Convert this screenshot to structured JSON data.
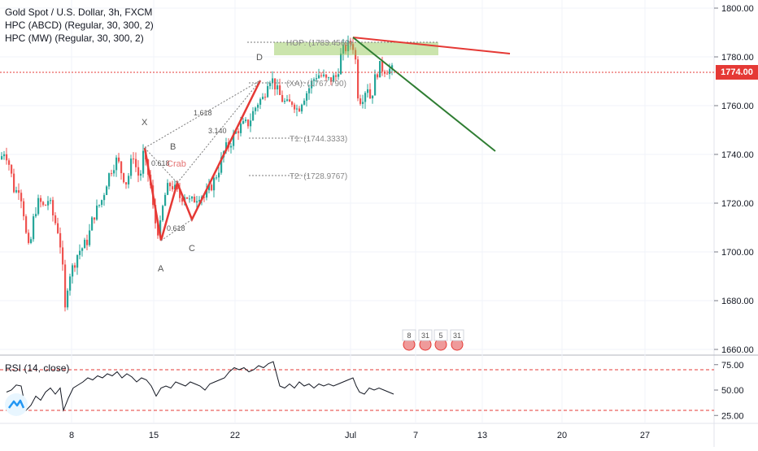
{
  "header": {
    "title": "Gold Spot / U.S. Dollar, 3h, FXCM",
    "indicator1": "HPC (ABCD) (Regular, 30, 300, 2)",
    "indicator2": "HPC (MW) (Regular, 30, 300, 2)"
  },
  "price_tag": "1774.00",
  "rsi": {
    "label": "RSI (14, close)",
    "ticks": [
      "75.00",
      "50.00",
      "25.00"
    ]
  },
  "colors": {
    "up": "#26a69a",
    "down": "#ef5350",
    "pattern_red": "#e53935",
    "trend_green": "#2e7d32",
    "zone_green": "#8bc34a",
    "rsi_line": "#131722",
    "dotted": "#7a7a7a"
  },
  "annotations": {
    "X": "X",
    "A": "A",
    "B": "B",
    "C": "C",
    "D": "D",
    "r0618a": "0.618",
    "r0618b": "0.618",
    "r1618": "1.618",
    "r3140": "3.140",
    "crab": "Crab",
    "hop": "HOP: (1783.4569)",
    "t1": "T1: (1744.3333)",
    "t2": "T2: (1728.9767)",
    "xa": "(XA): (1767.790)"
  },
  "event_labels": [
    "8",
    "31",
    "5",
    "31"
  ],
  "chart_data": [
    {
      "type": "candlestick",
      "title": "Gold Spot / U.S. Dollar, 3h, FXCM",
      "x_ticks": [
        "8",
        "15",
        "22",
        "Jul",
        "7",
        "13",
        "20",
        "27"
      ],
      "y_ticks": [
        "1800.00",
        "1780.00",
        "1760.00",
        "1740.00",
        "1720.00",
        "1700.00",
        "1680.00",
        "1660.00"
      ],
      "ylim": [
        1657,
        1803
      ],
      "last_price": 1774.0,
      "close_path": [
        [
          0,
          1738
        ],
        [
          6,
          1742
        ],
        [
          12,
          1735
        ],
        [
          18,
          1724
        ],
        [
          24,
          1727
        ],
        [
          30,
          1714
        ],
        [
          34,
          1700
        ],
        [
          38,
          1705
        ],
        [
          42,
          1716
        ],
        [
          48,
          1721
        ],
        [
          54,
          1718
        ],
        [
          60,
          1722
        ],
        [
          64,
          1716
        ],
        [
          68,
          1712
        ],
        [
          72,
          1708
        ],
        [
          76,
          1698
        ],
        [
          80,
          1676
        ],
        [
          84,
          1690
        ],
        [
          90,
          1694
        ],
        [
          96,
          1700
        ],
        [
          102,
          1702
        ],
        [
          108,
          1705
        ],
        [
          114,
          1714
        ],
        [
          120,
          1718
        ],
        [
          126,
          1722
        ],
        [
          132,
          1730
        ],
        [
          138,
          1735
        ],
        [
          144,
          1738
        ],
        [
          150,
          1732
        ],
        [
          156,
          1728
        ],
        [
          160,
          1735
        ],
        [
          164,
          1740
        ],
        [
          168,
          1733
        ],
        [
          172,
          1730
        ],
        [
          176,
          1740
        ],
        [
          180,
          1734
        ],
        [
          184,
          1730
        ],
        [
          188,
          1718
        ],
        [
          192,
          1710
        ],
        [
          196,
          1708
        ],
        [
          200,
          1718
        ],
        [
          204,
          1725
        ],
        [
          210,
          1728
        ],
        [
          216,
          1725
        ],
        [
          222,
          1722
        ],
        [
          228,
          1724
        ],
        [
          234,
          1720
        ],
        [
          240,
          1722
        ],
        [
          246,
          1724
        ],
        [
          252,
          1722
        ],
        [
          258,
          1726
        ],
        [
          264,
          1730
        ],
        [
          270,
          1735
        ],
        [
          276,
          1742
        ],
        [
          282,
          1744
        ],
        [
          288,
          1748
        ],
        [
          294,
          1751
        ],
        [
          300,
          1752
        ],
        [
          306,
          1753
        ],
        [
          312,
          1758
        ],
        [
          318,
          1762
        ],
        [
          324,
          1763
        ],
        [
          330,
          1772
        ],
        [
          336,
          1770
        ],
        [
          342,
          1765
        ],
        [
          348,
          1762
        ],
        [
          354,
          1760
        ],
        [
          360,
          1762
        ],
        [
          366,
          1758
        ],
        [
          372,
          1763
        ],
        [
          378,
          1766
        ],
        [
          384,
          1770
        ],
        [
          390,
          1773
        ],
        [
          396,
          1772
        ],
        [
          402,
          1770
        ],
        [
          408,
          1771
        ],
        [
          414,
          1772
        ],
        [
          420,
          1782
        ],
        [
          426,
          1784
        ],
        [
          432,
          1786
        ],
        [
          436,
          1783
        ],
        [
          440,
          1765
        ],
        [
          444,
          1762
        ],
        [
          448,
          1766
        ],
        [
          452,
          1768
        ],
        [
          456,
          1762
        ],
        [
          460,
          1770
        ],
        [
          466,
          1776
        ],
        [
          472,
          1775
        ],
        [
          478,
          1775
        ],
        [
          484,
          1774
        ]
      ]
    },
    {
      "type": "line",
      "title": "RSI (14, close)",
      "ylim": [
        20,
        80
      ],
      "levels": [
        70,
        30
      ],
      "y_ticks": [
        "75.00",
        "50.00",
        "25.00"
      ],
      "series": [
        {
          "values": [
            [
              8,
              48
            ],
            [
              14,
              50
            ],
            [
              20,
              55
            ],
            [
              26,
              54
            ],
            [
              32,
              30
            ],
            [
              38,
              35
            ],
            [
              44,
              44
            ],
            [
              50,
              40
            ],
            [
              56,
              48
            ],
            [
              62,
              52
            ],
            [
              68,
              46
            ],
            [
              74,
              52
            ],
            [
              78,
              30
            ],
            [
              84,
              42
            ],
            [
              90,
              52
            ],
            [
              96,
              55
            ],
            [
              102,
              58
            ],
            [
              108,
              62
            ],
            [
              114,
              60
            ],
            [
              120,
              64
            ],
            [
              126,
              62
            ],
            [
              132,
              66
            ],
            [
              138,
              64
            ],
            [
              144,
              68
            ],
            [
              150,
              62
            ],
            [
              156,
              66
            ],
            [
              162,
              63
            ],
            [
              168,
              58
            ],
            [
              174,
              62
            ],
            [
              180,
              60
            ],
            [
              186,
              54
            ],
            [
              192,
              44
            ],
            [
              198,
              52
            ],
            [
              204,
              54
            ],
            [
              210,
              52
            ],
            [
              216,
              58
            ],
            [
              222,
              56
            ],
            [
              228,
              54
            ],
            [
              234,
              58
            ],
            [
              240,
              56
            ],
            [
              246,
              54
            ],
            [
              252,
              50
            ],
            [
              258,
              56
            ],
            [
              264,
              58
            ],
            [
              270,
              60
            ],
            [
              276,
              62
            ],
            [
              282,
              68
            ],
            [
              288,
              72
            ],
            [
              294,
              70
            ],
            [
              300,
              72
            ],
            [
              306,
              68
            ],
            [
              312,
              70
            ],
            [
              318,
              74
            ],
            [
              324,
              72
            ],
            [
              330,
              76
            ],
            [
              336,
              78
            ],
            [
              340,
              66
            ],
            [
              344,
              54
            ],
            [
              350,
              52
            ],
            [
              356,
              56
            ],
            [
              362,
              52
            ],
            [
              368,
              58
            ],
            [
              374,
              54
            ],
            [
              380,
              56
            ],
            [
              386,
              52
            ],
            [
              392,
              56
            ],
            [
              398,
              54
            ],
            [
              404,
              56
            ],
            [
              410,
              54
            ],
            [
              416,
              56
            ],
            [
              422,
              58
            ],
            [
              428,
              60
            ],
            [
              434,
              62
            ],
            [
              438,
              54
            ],
            [
              442,
              48
            ],
            [
              448,
              46
            ],
            [
              454,
              52
            ],
            [
              460,
              50
            ],
            [
              466,
              52
            ],
            [
              472,
              50
            ],
            [
              478,
              48
            ],
            [
              484,
              46
            ]
          ]
        }
      ]
    }
  ]
}
